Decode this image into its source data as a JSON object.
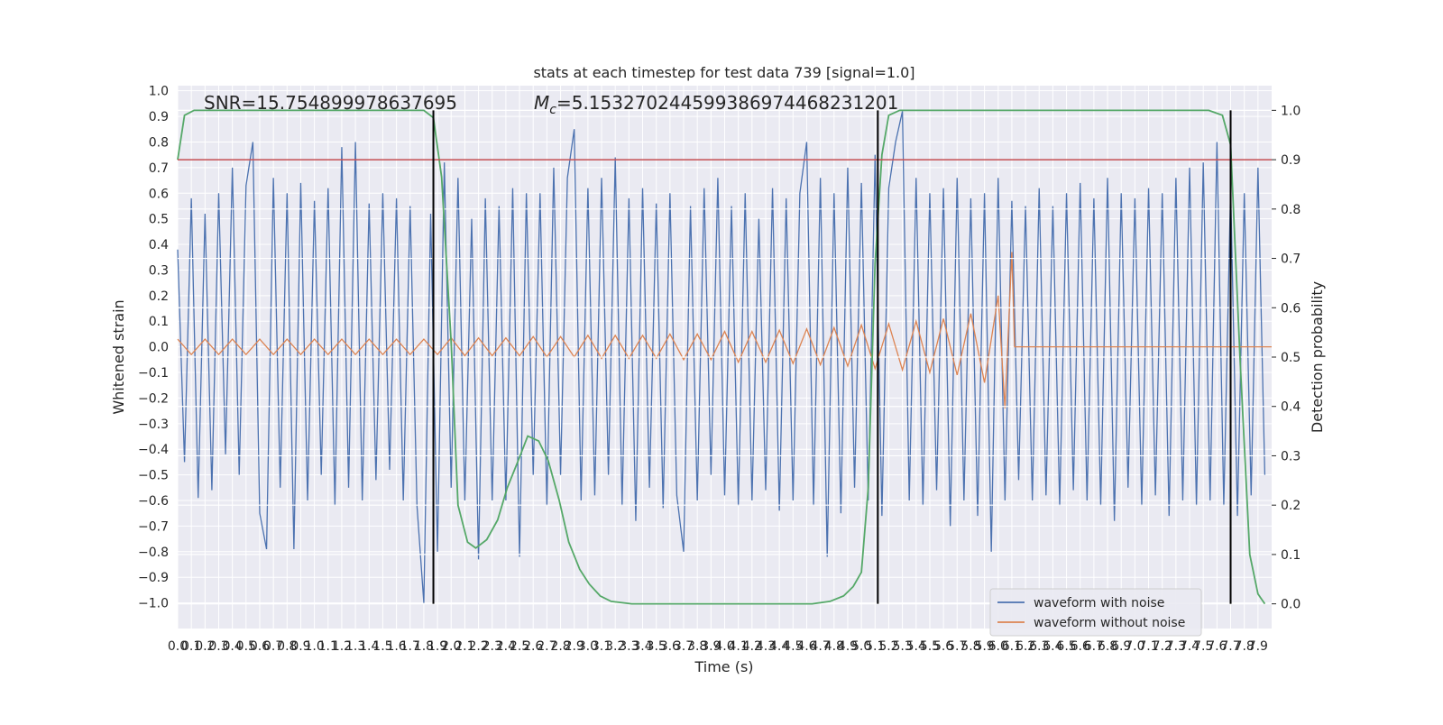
{
  "chart_data": {
    "type": "line",
    "title": "stats at each timestep for test data 739 [signal=1.0]",
    "x_label": "Time (s)",
    "y_label": "Whitened strain",
    "y2_label": "Detection probability",
    "annotations": {
      "snr": "SNR=15.754899978637695",
      "mc_symbol": "M",
      "mc_subscript": "c",
      "mc_value": "=5.153270244599386974468231201"
    },
    "xlim": [
      0,
      8
    ],
    "ylim": [
      -1.1,
      1.02
    ],
    "y2lim": [
      -0.05,
      1.05
    ],
    "grid": true,
    "background": "#eaeaf2",
    "legend": "lower right",
    "xticks": [
      {
        "value": 0,
        "label": "0.0"
      },
      0.1,
      0.2,
      0.3,
      0.4,
      0.5,
      0.6,
      0.7,
      0.8,
      0.9,
      {
        "value": 1,
        "label": "1.0"
      },
      1.1,
      1.2,
      1.3,
      1.4,
      1.5,
      1.6,
      1.7,
      1.8,
      1.9,
      {
        "value": 2,
        "label": "2.0"
      },
      2.1,
      2.2,
      2.3,
      2.4,
      2.5,
      2.6,
      2.7,
      2.8,
      2.9,
      {
        "value": 3,
        "label": "3.0"
      },
      3.1,
      3.2,
      3.3,
      3.4,
      3.5,
      3.6,
      3.7,
      3.8,
      3.9,
      {
        "value": 4,
        "label": "4.0"
      },
      4.1,
      4.2,
      4.3,
      4.4,
      4.5,
      4.6,
      4.7,
      4.8,
      4.9,
      {
        "value": 5,
        "label": "5.0"
      },
      5.1,
      5.2,
      5.3,
      5.4,
      5.5,
      5.6,
      5.7,
      5.8,
      5.9,
      {
        "value": 6,
        "label": "6.0"
      },
      6.1,
      6.2,
      6.3,
      6.4,
      6.5,
      6.6,
      6.7,
      6.8,
      6.9,
      {
        "value": 7,
        "label": "7.0"
      },
      7.1,
      7.2,
      7.3,
      7.4,
      7.5,
      7.6,
      7.7,
      7.8,
      7.9
    ],
    "yticks": [
      {
        "value": -1,
        "label": "−1.0"
      },
      {
        "value": -0.9,
        "label": "−0.9"
      },
      {
        "value": -0.8,
        "label": "−0.8"
      },
      {
        "value": -0.7,
        "label": "−0.7"
      },
      {
        "value": -0.6,
        "label": "−0.6"
      },
      {
        "value": -0.5,
        "label": "−0.5"
      },
      {
        "value": -0.4,
        "label": "−0.4"
      },
      {
        "value": -0.3,
        "label": "−0.3"
      },
      {
        "value": -0.2,
        "label": "−0.2"
      },
      {
        "value": -0.1,
        "label": "−0.1"
      },
      {
        "value": 0,
        "label": "0.0"
      },
      0.1,
      0.2,
      0.3,
      0.4,
      0.5,
      0.6,
      0.7,
      0.8,
      0.9,
      {
        "value": 1,
        "label": "1.0"
      }
    ],
    "y2ticks": [
      {
        "value": 0,
        "label": "0.0"
      },
      0.1,
      0.2,
      0.3,
      0.4,
      0.5,
      0.6,
      0.7,
      0.8,
      0.9,
      {
        "value": 1,
        "label": "1.0"
      }
    ],
    "series": [
      {
        "name": "waveform with noise",
        "color": "#4c72b0",
        "x": [
          0,
          0.05,
          0.1,
          0.15,
          0.2,
          0.25,
          0.3,
          0.35,
          0.4,
          0.45,
          0.5,
          0.55,
          0.6,
          0.65,
          0.7,
          0.75,
          0.8,
          0.85,
          0.9,
          0.95,
          1,
          1.05,
          1.1,
          1.15,
          1.2,
          1.25,
          1.3,
          1.35,
          1.4,
          1.45,
          1.5,
          1.55,
          1.6,
          1.65,
          1.7,
          1.75,
          1.8,
          1.85,
          1.9,
          1.95,
          2,
          2.05,
          2.1,
          2.15,
          2.2,
          2.25,
          2.3,
          2.35,
          2.4,
          2.45,
          2.5,
          2.55,
          2.6,
          2.65,
          2.7,
          2.75,
          2.8,
          2.85,
          2.9,
          2.95,
          3,
          3.05,
          3.1,
          3.15,
          3.2,
          3.25,
          3.3,
          3.35,
          3.4,
          3.45,
          3.5,
          3.55,
          3.6,
          3.65,
          3.7,
          3.75,
          3.8,
          3.85,
          3.9,
          3.95,
          4,
          4.05,
          4.1,
          4.15,
          4.2,
          4.25,
          4.3,
          4.35,
          4.4,
          4.45,
          4.5,
          4.55,
          4.6,
          4.65,
          4.7,
          4.75,
          4.8,
          4.85,
          4.9,
          4.95,
          5,
          5.05,
          5.1,
          5.15,
          5.2,
          5.25,
          5.3,
          5.35,
          5.4,
          5.45,
          5.5,
          5.55,
          5.6,
          5.65,
          5.7,
          5.75,
          5.8,
          5.85,
          5.9,
          5.95,
          6,
          6.05,
          6.1,
          6.15,
          6.2,
          6.25,
          6.3,
          6.35,
          6.4,
          6.45,
          6.5,
          6.55,
          6.6,
          6.65,
          6.7,
          6.75,
          6.8,
          6.85,
          6.9,
          6.95,
          7,
          7.05,
          7.1,
          7.15,
          7.2,
          7.25,
          7.3,
          7.35,
          7.4,
          7.45,
          7.5,
          7.55,
          7.6,
          7.65,
          7.7,
          7.75,
          7.8,
          7.85,
          7.9,
          7.95
        ],
        "values": [
          0.38,
          -0.45,
          0.58,
          -0.59,
          0.52,
          -0.56,
          0.6,
          -0.42,
          0.7,
          -0.5,
          0.63,
          0.8,
          -0.65,
          -0.79,
          0.66,
          -0.55,
          0.6,
          -0.79,
          0.64,
          -0.6,
          0.57,
          -0.5,
          0.62,
          -0.62,
          0.78,
          -0.55,
          0.8,
          -0.6,
          0.56,
          -0.52,
          0.6,
          -0.48,
          0.58,
          -0.6,
          0.55,
          -0.62,
          -1.0,
          0.52,
          -0.8,
          0.72,
          -0.55,
          0.66,
          -0.6,
          0.5,
          -0.83,
          0.58,
          -0.6,
          0.55,
          -0.6,
          0.62,
          -0.82,
          0.6,
          -0.5,
          0.6,
          -0.62,
          0.7,
          -0.5,
          0.66,
          0.85,
          -0.6,
          0.62,
          -0.58,
          0.66,
          -0.5,
          0.74,
          -0.62,
          0.58,
          -0.68,
          0.62,
          -0.55,
          0.56,
          -0.63,
          0.6,
          -0.58,
          -0.8,
          0.55,
          -0.6,
          0.62,
          -0.5,
          0.66,
          -0.58,
          0.55,
          -0.62,
          0.6,
          -0.6,
          0.5,
          -0.56,
          0.62,
          -0.64,
          0.58,
          -0.6,
          0.6,
          0.8,
          -0.62,
          0.66,
          -0.82,
          0.6,
          -0.65,
          0.7,
          -0.55,
          0.64,
          -0.6,
          0.75,
          -0.66,
          0.62,
          0.8,
          0.92,
          -0.6,
          0.66,
          -0.62,
          0.6,
          -0.56,
          0.62,
          -0.7,
          0.66,
          -0.6,
          0.58,
          -0.66,
          0.6,
          -0.8,
          0.66,
          -0.6,
          0.57,
          -0.52,
          0.55,
          -0.6,
          0.62,
          -0.58,
          0.55,
          -0.62,
          0.6,
          -0.56,
          0.64,
          -0.6,
          0.58,
          -0.62,
          0.66,
          -0.68,
          0.6,
          -0.55,
          0.58,
          -0.62,
          0.62,
          -0.58,
          0.6,
          -0.66,
          0.66,
          -0.6,
          0.7,
          -0.62,
          0.72,
          -0.6,
          0.8,
          -0.62,
          0.62,
          -0.66,
          0.6,
          -0.58,
          0.7,
          -0.5
        ]
      },
      {
        "name": "waveform without noise",
        "color": "#dd8452",
        "x": [
          0,
          0.1,
          0.2,
          0.3,
          0.4,
          0.5,
          0.6,
          0.7,
          0.8,
          0.9,
          1,
          1.1,
          1.2,
          1.3,
          1.4,
          1.5,
          1.6,
          1.7,
          1.8,
          1.9,
          2,
          2.1,
          2.2,
          2.3,
          2.4,
          2.5,
          2.6,
          2.7,
          2.8,
          2.9,
          3,
          3.1,
          3.2,
          3.3,
          3.4,
          3.5,
          3.6,
          3.7,
          3.8,
          3.9,
          4,
          4.1,
          4.2,
          4.3,
          4.4,
          4.5,
          4.6,
          4.7,
          4.8,
          4.9,
          5,
          5.1,
          5.2,
          5.3,
          5.4,
          5.5,
          5.6,
          5.7,
          5.8,
          5.9,
          6,
          6.05,
          6.1,
          6.12,
          8
        ],
        "values": [
          0.03,
          -0.03,
          0.03,
          -0.03,
          0.03,
          -0.03,
          0.03,
          -0.03,
          0.03,
          -0.03,
          0.03,
          -0.03,
          0.03,
          -0.03,
          0.03,
          -0.03,
          0.03,
          -0.03,
          0.03,
          -0.03,
          0.035,
          -0.035,
          0.035,
          -0.035,
          0.035,
          -0.035,
          0.04,
          -0.04,
          0.04,
          -0.04,
          0.045,
          -0.045,
          0.045,
          -0.045,
          0.045,
          -0.045,
          0.05,
          -0.05,
          0.05,
          -0.05,
          0.06,
          -0.06,
          0.06,
          -0.06,
          0.065,
          -0.065,
          0.07,
          -0.07,
          0.075,
          -0.075,
          0.085,
          -0.085,
          0.09,
          -0.09,
          0.1,
          -0.1,
          0.11,
          -0.11,
          0.13,
          -0.14,
          0.2,
          -0.24,
          0.37,
          0,
          0
        ]
      },
      {
        "color": "#55a868",
        "axis": "y2",
        "x": [
          0,
          0.05,
          0.12,
          1.8,
          1.87,
          1.93,
          2.0,
          2.05,
          2.12,
          2.18,
          2.26,
          2.34,
          2.41,
          2.49,
          2.56,
          2.64,
          2.71,
          2.79,
          2.86,
          2.94,
          3.01,
          3.09,
          3.17,
          3.32,
          4.64,
          4.77,
          4.87,
          4.94,
          5.0,
          5.05,
          5.1,
          5.15,
          5.2,
          5.28,
          7.54,
          7.64,
          7.7,
          7.77,
          7.84,
          7.9,
          7.95
        ],
        "values": [
          0.9,
          0.99,
          1.0,
          1.0,
          0.985,
          0.865,
          0.53,
          0.2,
          0.125,
          0.113,
          0.13,
          0.17,
          0.235,
          0.29,
          0.34,
          0.33,
          0.29,
          0.21,
          0.125,
          0.07,
          0.04,
          0.016,
          0.005,
          0.0,
          0.0,
          0.005,
          0.016,
          0.035,
          0.064,
          0.235,
          0.69,
          0.91,
          0.99,
          1.0,
          1.0,
          0.99,
          0.93,
          0.49,
          0.1,
          0.02,
          0.0
        ]
      }
    ],
    "threshold": {
      "value": 0.9,
      "axis": "y2",
      "color": "#c44e52"
    },
    "vlines": {
      "x": [
        1.87,
        5.12,
        7.7
      ],
      "y2_span": [
        0,
        1
      ],
      "color": "#000000"
    }
  }
}
